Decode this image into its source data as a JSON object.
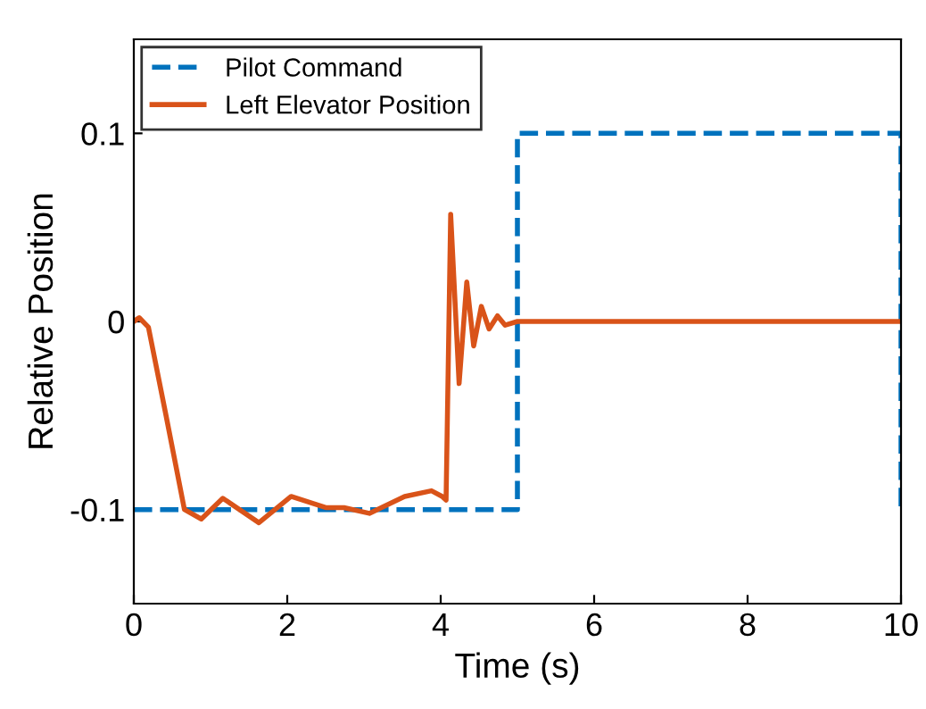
{
  "chart_data": {
    "type": "line",
    "xlabel": "Time (s)",
    "ylabel": "Relative Position",
    "xlim": [
      0,
      10
    ],
    "ylim": [
      -0.15,
      0.15
    ],
    "xticks": [
      0,
      2,
      4,
      6,
      8,
      10
    ],
    "yticks": [
      -0.1,
      0,
      0.1
    ],
    "grid": false,
    "legend": "top left",
    "series": [
      {
        "name": "Pilot Command",
        "color": "#0072bd",
        "line_style": "dashed",
        "x": [
          0,
          5,
          5,
          10,
          10
        ],
        "values": [
          -0.1,
          -0.1,
          0.1,
          0.1,
          -0.1
        ]
      },
      {
        "name": "Left Elevator Position",
        "color": "#d95319",
        "line_style": "solid",
        "x": [
          0,
          0.07,
          0.19,
          0.42,
          0.66,
          0.88,
          1.16,
          1.63,
          2.05,
          2.51,
          2.74,
          3.07,
          3.53,
          3.88,
          4.02,
          4.07,
          4.13,
          4.24,
          4.34,
          4.43,
          4.53,
          4.63,
          4.74,
          4.84,
          5,
          10
        ],
        "values": [
          0,
          0.002,
          -0.003,
          -0.05,
          -0.1,
          -0.105,
          -0.094,
          -0.107,
          -0.093,
          -0.099,
          -0.099,
          -0.102,
          -0.093,
          -0.09,
          -0.093,
          -0.095,
          0.057,
          -0.033,
          0.021,
          -0.013,
          0.008,
          -0.004,
          0.003,
          -0.002,
          0,
          0
        ]
      }
    ]
  }
}
